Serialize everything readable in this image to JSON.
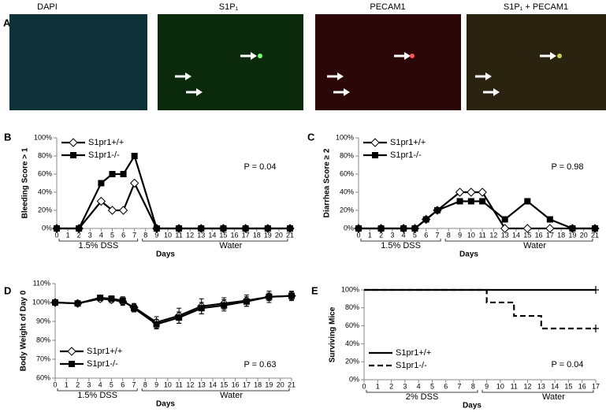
{
  "figure_a": {
    "panel": "A",
    "images": [
      "DAPI",
      "S1P₁",
      "PECAM1",
      "S1P₁ + PECAM1"
    ]
  },
  "chart_data": [
    {
      "type": "line",
      "panel": "B",
      "ylabel": "Bleeding Score > 1",
      "xlabel": "Days",
      "x_groups": [
        "1.5% DSS",
        "Water"
      ],
      "annotation": "P = 0.04",
      "x": [
        0,
        2,
        4,
        5,
        6,
        7,
        9,
        11,
        13,
        15,
        17,
        19,
        21
      ],
      "series": [
        {
          "name": "S1pr1+/+",
          "color": "#000000",
          "marker": "diamond",
          "values": [
            0,
            0,
            30,
            20,
            20,
            50,
            0,
            0,
            0,
            0,
            0,
            0,
            0
          ]
        },
        {
          "name": "S1pr1-/-",
          "color": "#000000",
          "marker": "square",
          "values": [
            0,
            0,
            50,
            60,
            60,
            80,
            0,
            0,
            0,
            0,
            0,
            0,
            0
          ]
        }
      ],
      "xlim": [
        0,
        21
      ],
      "xticks": [
        0,
        1,
        2,
        3,
        4,
        5,
        6,
        7,
        8,
        9,
        10,
        11,
        12,
        13,
        14,
        15,
        16,
        17,
        18,
        19,
        20,
        21
      ],
      "ylim": [
        0,
        100
      ],
      "yticks": [
        {
          "value": 0,
          "label": "0%"
        },
        {
          "value": 20,
          "label": "20%"
        },
        {
          "value": 40,
          "label": "40%"
        },
        {
          "value": 60,
          "label": "60%"
        },
        {
          "value": 80,
          "label": "80%"
        },
        {
          "value": 100,
          "label": "100%"
        }
      ],
      "legend": "upper left",
      "grid": false
    },
    {
      "type": "line",
      "panel": "C",
      "ylabel": "Diarrhea Score ≥ 2",
      "xlabel": "Days",
      "x_groups": [
        "1.5% DSS",
        "Water"
      ],
      "annotation": "P = 0.98",
      "x": [
        0,
        2,
        4,
        5,
        6,
        7,
        9,
        10,
        11,
        13,
        15,
        17,
        19,
        21
      ],
      "series": [
        {
          "name": "S1pr1+/+",
          "color": "#000000",
          "marker": "diamond",
          "values": [
            0,
            0,
            0,
            0,
            10,
            20,
            40,
            40,
            40,
            0,
            0,
            0,
            0,
            0
          ]
        },
        {
          "name": "S1pr1-/-",
          "color": "#000000",
          "marker": "square",
          "values": [
            0,
            0,
            0,
            0,
            10,
            20,
            30,
            30,
            30,
            10,
            30,
            10,
            0,
            0
          ]
        }
      ],
      "xlim": [
        0,
        21
      ],
      "xticks": [
        0,
        1,
        2,
        3,
        4,
        5,
        6,
        7,
        8,
        9,
        10,
        11,
        12,
        13,
        14,
        15,
        16,
        17,
        18,
        19,
        20,
        21
      ],
      "ylim": [
        0,
        100
      ],
      "yticks": [
        {
          "value": 0,
          "label": "0%"
        },
        {
          "value": 20,
          "label": "20%"
        },
        {
          "value": 40,
          "label": "40%"
        },
        {
          "value": 60,
          "label": "60%"
        },
        {
          "value": 80,
          "label": "80%"
        },
        {
          "value": 100,
          "label": "100%"
        }
      ],
      "legend": "upper left",
      "grid": false
    },
    {
      "type": "line",
      "panel": "D",
      "ylabel": "Body Weight of Day 0",
      "xlabel": "Days",
      "x_groups": [
        "1.5% DSS",
        "Water"
      ],
      "annotation": "P = 0.63",
      "x": [
        0,
        2,
        4,
        5,
        6,
        7,
        9,
        11,
        13,
        15,
        17,
        19,
        21
      ],
      "series": [
        {
          "name": "S1pr1+/+",
          "color": "#000000",
          "marker": "diamond",
          "values": [
            100,
            99.5,
            102,
            101.5,
            100.5,
            97.5,
            89.5,
            93,
            98,
            99.5,
            101,
            103,
            103.5
          ],
          "errors": [
            1,
            1,
            1.5,
            1.5,
            2,
            2,
            3,
            4,
            4,
            3,
            3,
            3,
            2.5
          ]
        },
        {
          "name": "S1pr1-/-",
          "color": "#000000",
          "marker": "square",
          "values": [
            100,
            99.5,
            102.5,
            102,
            101,
            97,
            88.5,
            92,
            97,
            98.5,
            100.5,
            103,
            103.5
          ],
          "errors": [
            1,
            1,
            1,
            1.5,
            2,
            2,
            2.5,
            3,
            3,
            3,
            2.5,
            2,
            2
          ]
        }
      ],
      "xlim": [
        0,
        21
      ],
      "xticks": [
        0,
        1,
        2,
        3,
        4,
        5,
        6,
        7,
        8,
        9,
        10,
        11,
        12,
        13,
        14,
        15,
        16,
        17,
        18,
        19,
        20,
        21
      ],
      "ylim": [
        60,
        110
      ],
      "yticks": [
        {
          "value": 60,
          "label": "60%"
        },
        {
          "value": 70,
          "label": "70%"
        },
        {
          "value": 80,
          "label": "80%"
        },
        {
          "value": 90,
          "label": "90%"
        },
        {
          "value": 100,
          "label": "100%"
        },
        {
          "value": 110,
          "label": "110%"
        }
      ],
      "legend": "lower left",
      "grid": false
    },
    {
      "type": "step",
      "panel": "E",
      "ylabel": "Surviving Mice",
      "xlabel": "Days",
      "x_groups": [
        "2% DSS",
        "Water"
      ],
      "annotation": "P = 0.04",
      "x": [
        0,
        9,
        11,
        13,
        17
      ],
      "series": [
        {
          "name": "S1pr1+/+",
          "color": "#000000",
          "dash": false,
          "values": [
            100,
            100,
            100,
            100,
            100
          ]
        },
        {
          "name": "S1pr1-/-",
          "color": "#000000",
          "dash": true,
          "values": [
            100,
            86,
            71,
            57,
            57
          ]
        }
      ],
      "xlim": [
        0,
        17
      ],
      "xticks": [
        0,
        1,
        2,
        3,
        4,
        5,
        6,
        7,
        8,
        9,
        10,
        11,
        12,
        13,
        14,
        15,
        16,
        17
      ],
      "ylim": [
        0,
        100
      ],
      "yticks": [
        {
          "value": 0,
          "label": "0%"
        },
        {
          "value": 20,
          "label": "20%"
        },
        {
          "value": 40,
          "label": "40%"
        },
        {
          "value": 60,
          "label": "60%"
        },
        {
          "value": 80,
          "label": "80%"
        },
        {
          "value": 100,
          "label": "100%"
        }
      ],
      "legend": "lower left",
      "grid": false
    }
  ]
}
